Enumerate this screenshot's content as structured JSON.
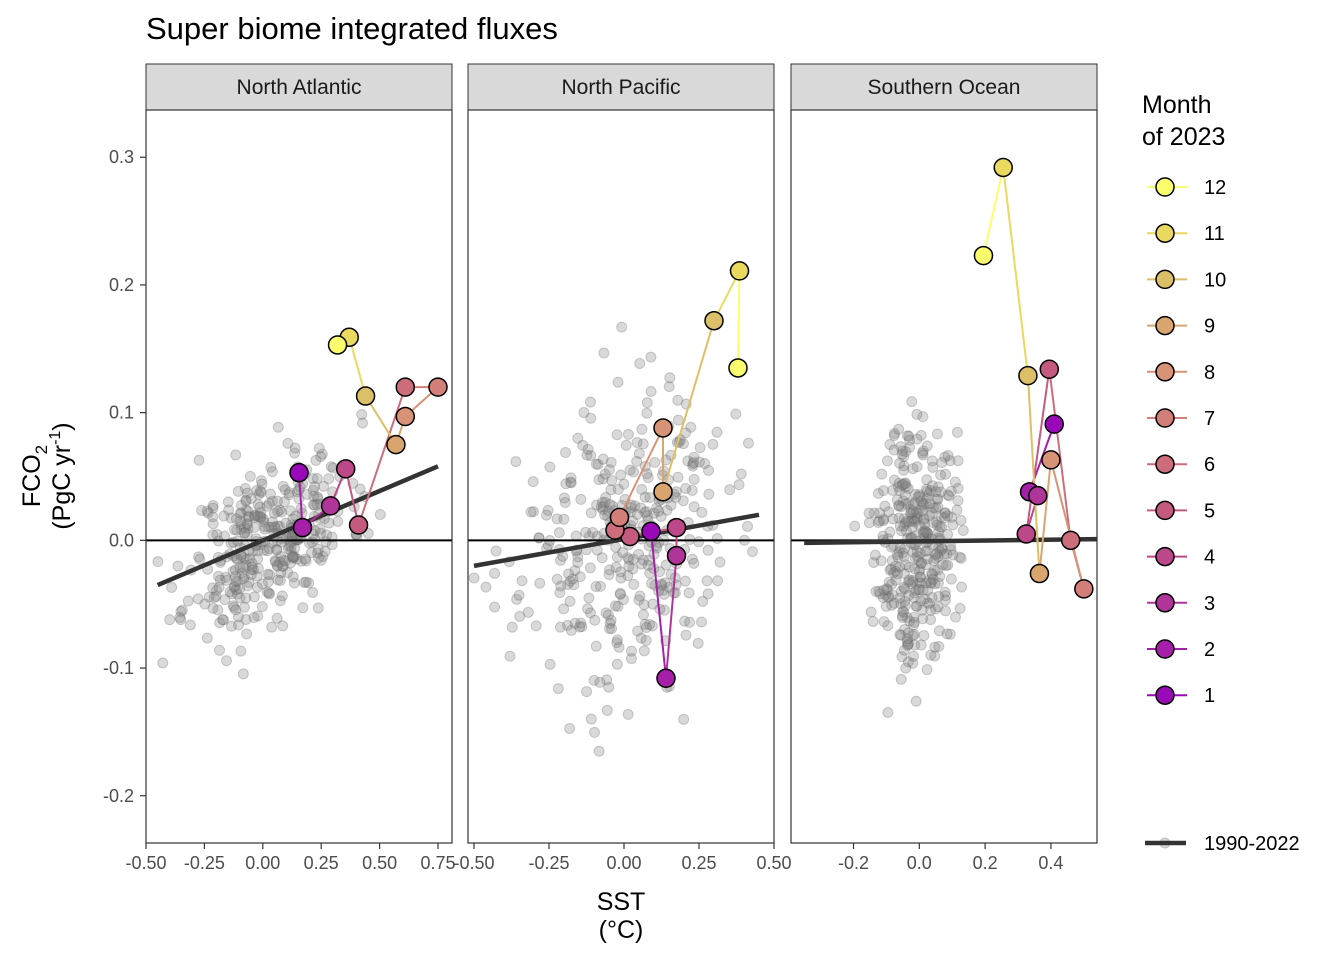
{
  "chart_data": {
    "type": "scatter",
    "title": "Super biome integrated fluxes",
    "xlabel": "SST",
    "xlabel_unit": "(°C)",
    "ylabel_main": "FCO",
    "ylabel_sub": "2",
    "ylabel_unit_pre": "(PgC yr",
    "ylabel_unit_sup": "-1",
    "ylabel_unit_post": ")",
    "ylim": [
      -0.237,
      0.337
    ],
    "y_ticks": [
      -0.2,
      -0.1,
      0.0,
      0.1,
      0.2,
      0.3
    ],
    "y_tick_labels": [
      "-0.2",
      "-0.1",
      "0.0",
      "0.1",
      "0.2",
      "0.3"
    ],
    "grid": false,
    "legend_position": "right",
    "legend": {
      "title_line1": "Month",
      "title_line2": "of 2023",
      "months": [
        "12",
        "11",
        "10",
        "9",
        "8",
        "7",
        "6",
        "5",
        "4",
        "3",
        "2",
        "1"
      ],
      "month_colors": [
        "#FCFD6D",
        "#EAD95F",
        "#DCC068",
        "#D9A56F",
        "#D79376",
        "#D37F79",
        "#CD6D7B",
        "#C55A80",
        "#BC4889",
        "#B03598",
        "#A51FA8",
        "#9A09B8"
      ],
      "trend_label": "1990-2022",
      "trend_color": "#333333"
    },
    "panels": [
      {
        "name": "North Atlantic",
        "xlim": [
          -0.5,
          0.81
        ],
        "x_ticks": [
          -0.5,
          -0.25,
          0.0,
          0.25,
          0.5,
          0.75
        ],
        "x_tick_labels": [
          "-0.50",
          "-0.25",
          "0.00",
          "0.25",
          "0.50",
          "0.75"
        ],
        "trend": {
          "x": [
            -0.45,
            0.75
          ],
          "y": [
            -0.035,
            0.058
          ]
        },
        "months_2023": [
          {
            "month": 1,
            "x": 0.155,
            "y": 0.053
          },
          {
            "month": 2,
            "x": 0.17,
            "y": 0.01
          },
          {
            "month": 3,
            "x": 0.29,
            "y": 0.027
          },
          {
            "month": 4,
            "x": 0.355,
            "y": 0.056
          },
          {
            "month": 5,
            "x": 0.41,
            "y": 0.012
          },
          {
            "month": 6,
            "x": 0.61,
            "y": 0.12
          },
          {
            "month": 7,
            "x": 0.75,
            "y": 0.12
          },
          {
            "month": 8,
            "x": 0.61,
            "y": 0.097
          },
          {
            "month": 9,
            "x": 0.57,
            "y": 0.075
          },
          {
            "month": 10,
            "x": 0.44,
            "y": 0.113
          },
          {
            "month": 11,
            "x": 0.37,
            "y": 0.159
          },
          {
            "month": 12,
            "x": 0.32,
            "y": 0.153
          }
        ],
        "history": {
          "cx": 0.03,
          "cy": 0.0,
          "sx": 0.17,
          "sy": 0.035,
          "rho": 0.45,
          "n": 360,
          "seed": 11
        }
      },
      {
        "name": "North Pacific",
        "xlim": [
          -0.52,
          0.5
        ],
        "x_ticks": [
          -0.5,
          -0.25,
          0.0,
          0.25,
          0.5
        ],
        "x_tick_labels": [
          "-0.50",
          "-0.25",
          "0.00",
          "0.25",
          "0.50"
        ],
        "trend": {
          "x": [
            -0.5,
            0.45
          ],
          "y": [
            -0.02,
            0.02
          ]
        },
        "months_2023": [
          {
            "month": 1,
            "x": 0.09,
            "y": 0.007
          },
          {
            "month": 2,
            "x": 0.14,
            "y": -0.108
          },
          {
            "month": 3,
            "x": 0.175,
            "y": -0.012
          },
          {
            "month": 4,
            "x": 0.175,
            "y": 0.01
          },
          {
            "month": 5,
            "x": 0.02,
            "y": 0.003
          },
          {
            "month": 6,
            "x": -0.03,
            "y": 0.008
          },
          {
            "month": 7,
            "x": -0.015,
            "y": 0.018
          },
          {
            "month": 8,
            "x": 0.13,
            "y": 0.088
          },
          {
            "month": 9,
            "x": 0.13,
            "y": 0.038
          },
          {
            "month": 10,
            "x": 0.3,
            "y": 0.172
          },
          {
            "month": 11,
            "x": 0.385,
            "y": 0.211
          },
          {
            "month": 12,
            "x": 0.38,
            "y": 0.135
          }
        ],
        "history": {
          "cx": 0.0,
          "cy": 0.0,
          "sx": 0.17,
          "sy": 0.055,
          "rho": 0.15,
          "n": 360,
          "seed": 23
        }
      },
      {
        "name": "Southern Ocean",
        "xlim": [
          -0.39,
          0.54
        ],
        "x_ticks": [
          -0.2,
          0.0,
          0.2,
          0.4
        ],
        "x_tick_labels": [
          "-0.2",
          "0.0",
          "0.2",
          "0.4"
        ],
        "trend": {
          "x": [
            -0.35,
            0.54
          ],
          "y": [
            -0.002,
            0.001
          ]
        },
        "months_2023": [
          {
            "month": 1,
            "x": 0.41,
            "y": 0.091
          },
          {
            "month": 2,
            "x": 0.335,
            "y": 0.038
          },
          {
            "month": 3,
            "x": 0.36,
            "y": 0.035
          },
          {
            "month": 4,
            "x": 0.325,
            "y": 0.005
          },
          {
            "month": 5,
            "x": 0.395,
            "y": 0.134
          },
          {
            "month": 6,
            "x": 0.46,
            "y": 0.0
          },
          {
            "month": 7,
            "x": 0.5,
            "y": -0.038
          },
          {
            "month": 8,
            "x": 0.4,
            "y": 0.063
          },
          {
            "month": 9,
            "x": 0.365,
            "y": -0.026
          },
          {
            "month": 10,
            "x": 0.33,
            "y": 0.129
          },
          {
            "month": 11,
            "x": 0.255,
            "y": 0.292
          },
          {
            "month": 12,
            "x": 0.195,
            "y": 0.223
          }
        ],
        "history": {
          "cx": -0.01,
          "cy": 0.0,
          "sx": 0.06,
          "sy": 0.045,
          "rho": 0.05,
          "n": 360,
          "seed": 37
        }
      }
    ]
  }
}
